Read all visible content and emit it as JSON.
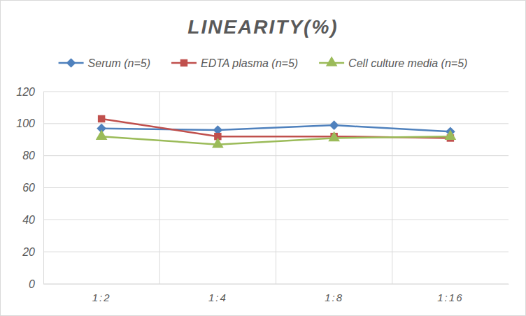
{
  "chart_data": {
    "type": "line",
    "title": "LINEARITY(%)",
    "categories": [
      "1:2",
      "1:4",
      "1:8",
      "1:16"
    ],
    "series": [
      {
        "name": "Serum (n=5)",
        "color": "#4F81BD",
        "marker": "diamond",
        "values": [
          97,
          96,
          99,
          95
        ]
      },
      {
        "name": "EDTA plasma (n=5)",
        "color": "#C0504D",
        "marker": "square",
        "values": [
          103,
          92,
          92,
          91
        ]
      },
      {
        "name": "Cell culture media (n=5)",
        "color": "#9BBB59",
        "marker": "triangle",
        "values": [
          92,
          87,
          91,
          92
        ]
      }
    ],
    "ylim": [
      0,
      120
    ],
    "yticks": [
      0,
      20,
      40,
      60,
      80,
      100,
      120
    ],
    "grid": true,
    "legend": "top"
  }
}
